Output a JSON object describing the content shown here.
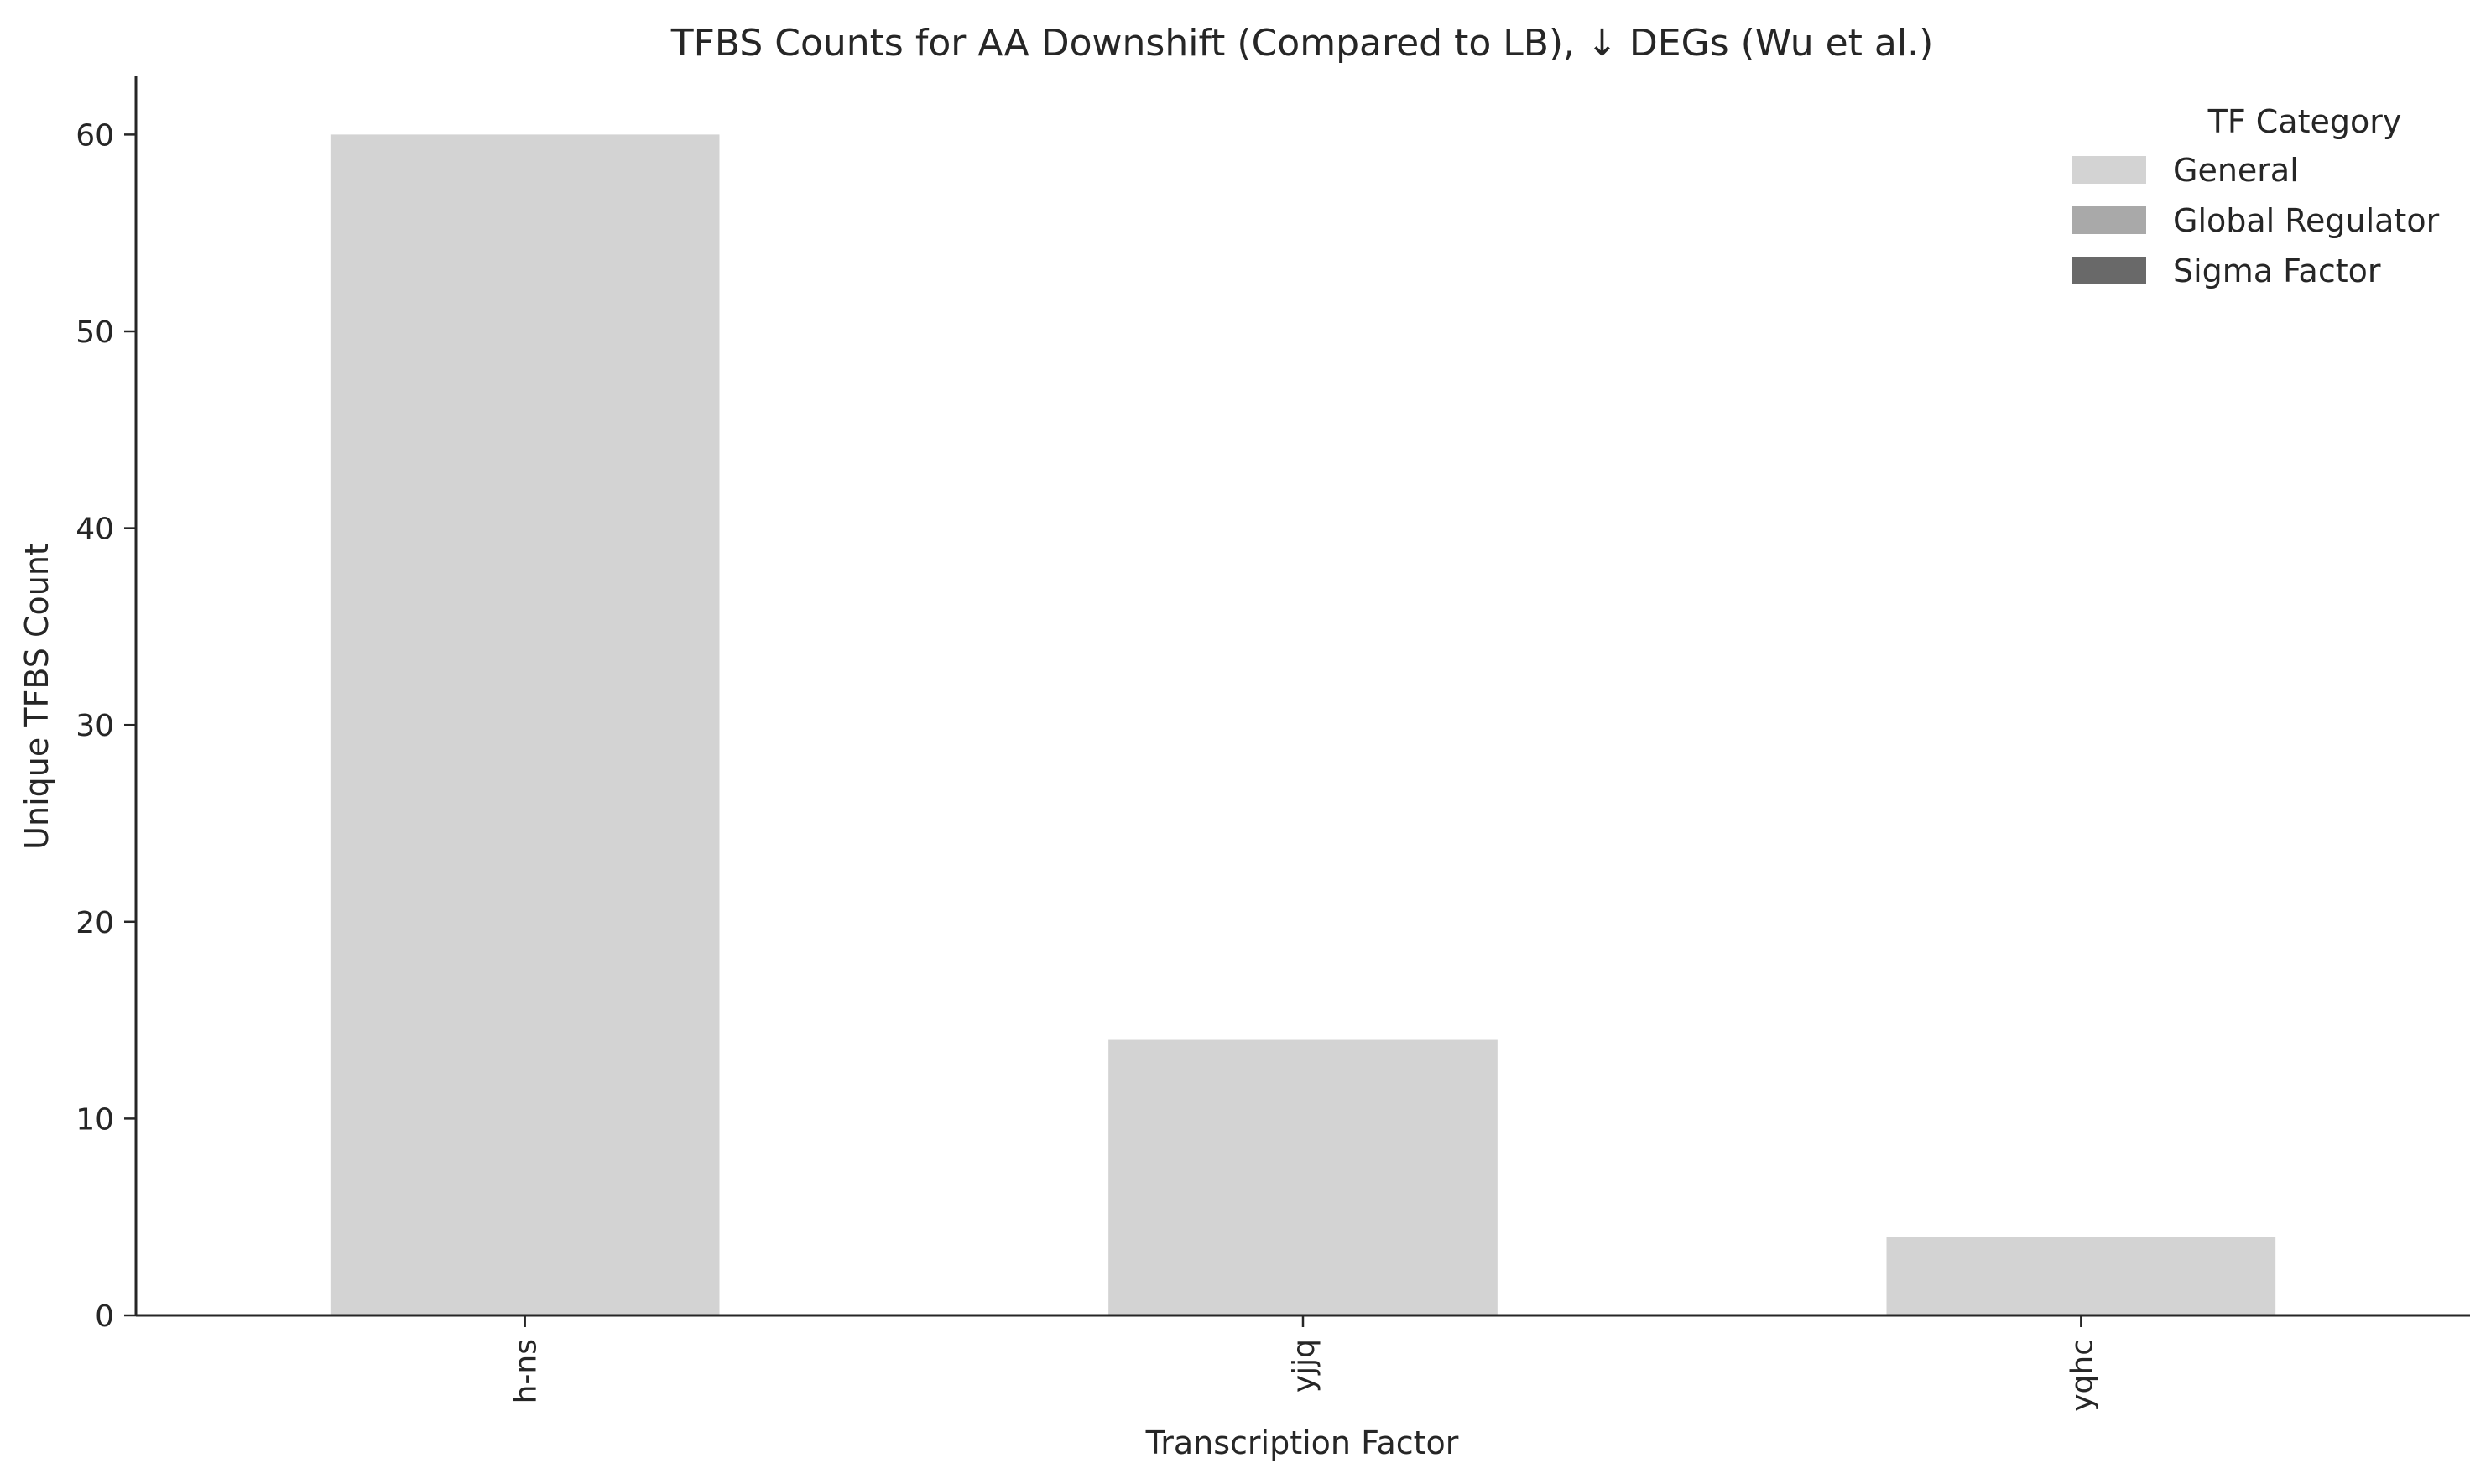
{
  "chart_data": {
    "type": "bar",
    "title": "TFBS Counts for AA Downshift (Compared to LB), ↓ DEGs (Wu et al.)",
    "xlabel": "Transcription Factor",
    "ylabel": "Unique TFBS Count",
    "categories": [
      "h-ns",
      "yjjq",
      "yqhc"
    ],
    "values": [
      60,
      14,
      4
    ],
    "bar_categories": [
      "General",
      "General",
      "General"
    ],
    "ylim": [
      0,
      63
    ],
    "yticks": [
      0,
      10,
      20,
      30,
      40,
      50,
      60
    ],
    "grid": false,
    "legend": {
      "title": "TF Category",
      "placement": "top-right",
      "entries": [
        {
          "label": "General",
          "color": "#d3d3d3"
        },
        {
          "label": "Global Regulator",
          "color": "#a9a9a9"
        },
        {
          "label": "Sigma Factor",
          "color": "#696969"
        }
      ]
    }
  }
}
